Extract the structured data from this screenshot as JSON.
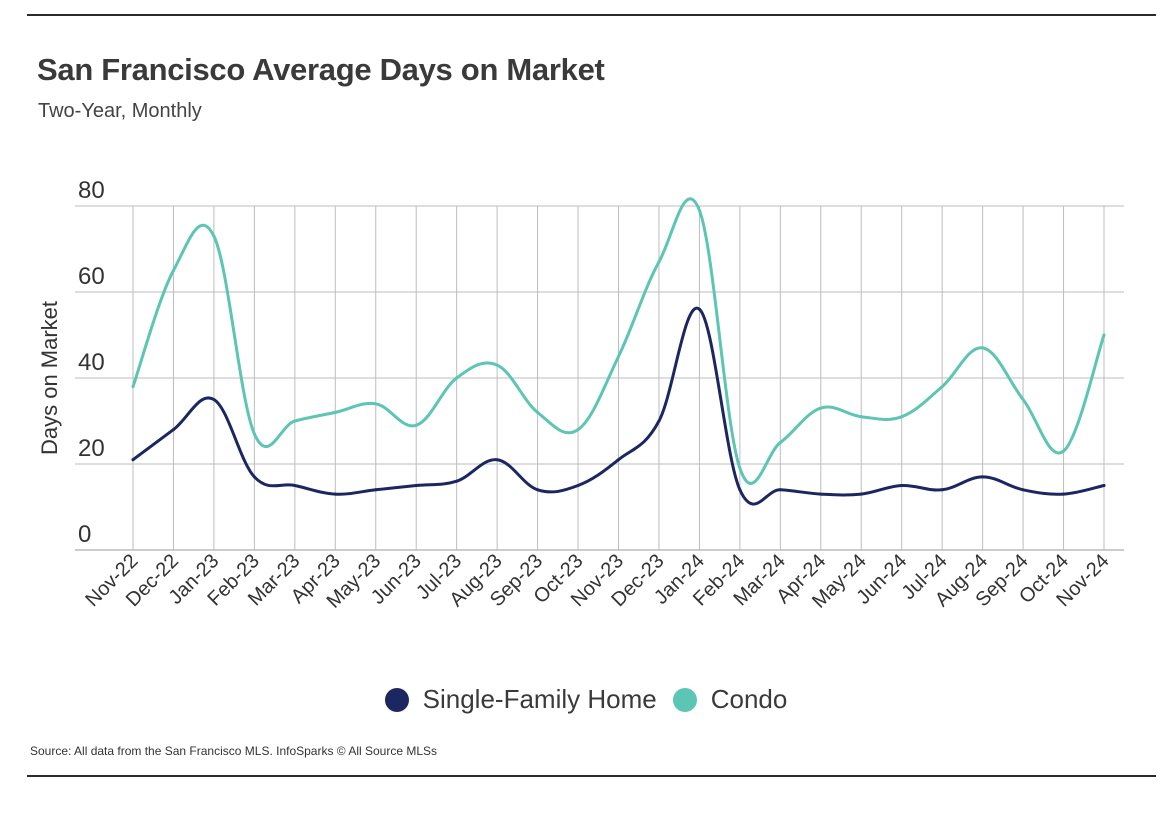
{
  "header": {
    "title": "San Francisco Average Days on Market",
    "subtitle": "Two-Year, Monthly"
  },
  "footer": {
    "source": "Source:  All data from the San Francisco MLS. InfoSparks © All Source MLSs"
  },
  "colors": {
    "single_family": "#1c2660",
    "condo": "#5cc5b3",
    "grid": "#bdbdbd"
  },
  "chart_data": {
    "type": "line",
    "title": "San Francisco Average Days on Market",
    "subtitle": "Two-Year, Monthly",
    "ylabel": "Days on Market",
    "xlabel": "",
    "ylim": [
      0,
      80
    ],
    "yticks": [
      0,
      20,
      40,
      60,
      80
    ],
    "grid": true,
    "legend_position": "bottom-center",
    "categories": [
      "Nov-22",
      "Dec-22",
      "Jan-23",
      "Feb-23",
      "Mar-23",
      "Apr-23",
      "May-23",
      "Jun-23",
      "Jul-23",
      "Aug-23",
      "Sep-23",
      "Oct-23",
      "Nov-23",
      "Dec-23",
      "Jan-24",
      "Feb-24",
      "Mar-24",
      "Apr-24",
      "May-24",
      "Jun-24",
      "Jul-24",
      "Aug-24",
      "Sep-24",
      "Oct-24",
      "Nov-24"
    ],
    "series": [
      {
        "name": "Single-Family Home",
        "color": "#1c2660",
        "values": [
          21,
          28,
          35,
          17,
          15,
          13,
          14,
          15,
          16,
          21,
          14,
          15,
          21,
          30,
          56,
          14,
          14,
          13,
          13,
          15,
          14,
          17,
          14,
          13,
          15
        ]
      },
      {
        "name": "Condo",
        "color": "#5cc5b3",
        "values": [
          38,
          65,
          73,
          27,
          30,
          32,
          34,
          29,
          40,
          43,
          32,
          28,
          45,
          67,
          79,
          19,
          25,
          33,
          31,
          31,
          38,
          47,
          35,
          23,
          50
        ]
      }
    ]
  }
}
